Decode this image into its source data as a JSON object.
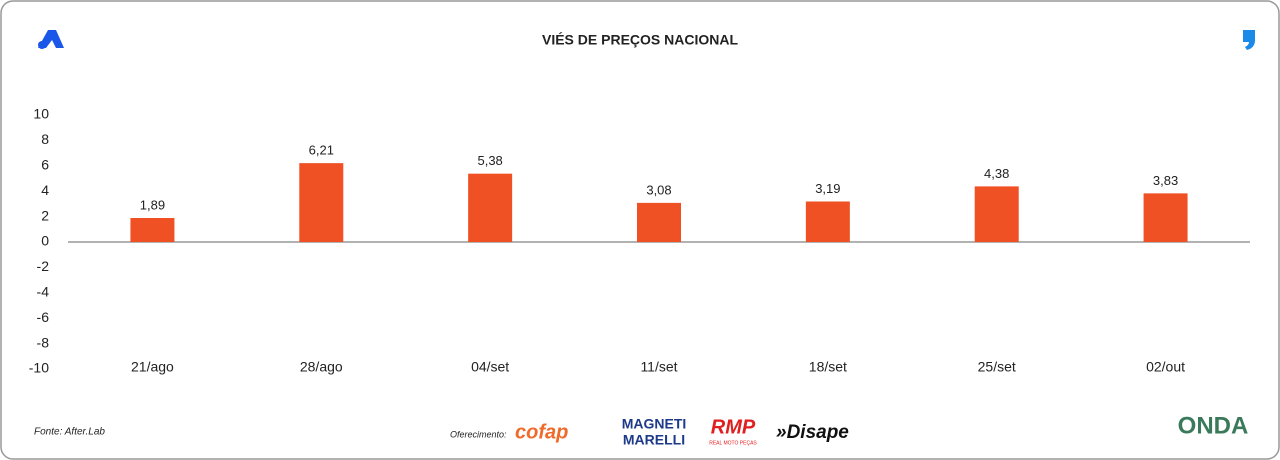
{
  "chart_data": {
    "type": "bar",
    "title": "VIÉS DE PREÇOS NACIONAL",
    "categories": [
      "21/ago",
      "28/ago",
      "04/set",
      "11/set",
      "18/set",
      "25/set",
      "02/out"
    ],
    "values": [
      1.89,
      6.21,
      5.38,
      3.08,
      3.19,
      4.38,
      3.83
    ],
    "value_labels": [
      "1,89",
      "6,21",
      "5,38",
      "3,08",
      "3,19",
      "4,38",
      "3,83"
    ],
    "color": "#ef5124",
    "ylim": [
      -10,
      10
    ],
    "yticks": [
      -10,
      -8,
      -6,
      -4,
      -2,
      0,
      2,
      4,
      6,
      8,
      10
    ],
    "grid": false,
    "source": "Fonte: After.Lab"
  },
  "footer": {
    "sponsor_label": "Oferecimento:",
    "sponsors": [
      "cofap",
      "MAGNETI",
      "MARELLI",
      "RMP",
      "REAL MOTO PEÇAS",
      "»Disape",
      "ONDA"
    ]
  }
}
